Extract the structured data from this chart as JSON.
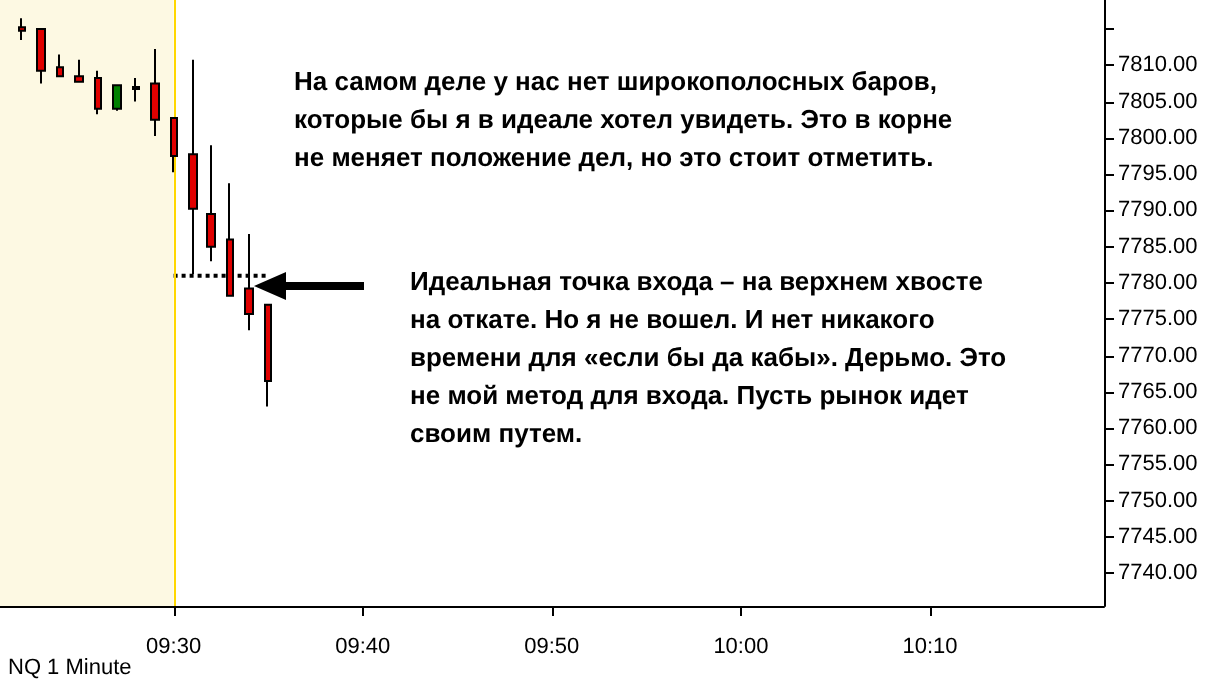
{
  "chart_data": {
    "type": "candlestick",
    "annotations": [
      "На самом деле у нас нет широкополосных баров, которые бы я в идеале хотел увидеть. Это в корне не меняет положение дел, но это стоит отметить.",
      "Идеальная точка входа – на верхнем хвосте на откате. Но я не вошел. И нет никакого времени для «если бы да кабы». Дерьмо. Это не мой метод для входа. Пусть рынок идет своим путем.",
      "NQ 1 Minute"
    ],
    "x": [
      9.3667,
      9.3833,
      9.4,
      9.4167,
      9.4333,
      9.45,
      9.4667,
      9.4833,
      9.5,
      9.5167,
      9.5333,
      9.55,
      9.5667,
      9.5833
    ],
    "series": [
      {
        "type": "candlestick",
        "colors": [
          "#e00000",
          "#e00000",
          "#e00000",
          "#e00000",
          "#e00000",
          "#008000",
          "#e00000",
          "#e00000",
          "#e00000",
          "#e00000",
          "#e00000",
          "#e00000",
          "#e00000",
          "#e00000"
        ],
        "ohlc": [
          [
            7815.25,
            7816.5,
            7813.5,
            7814.75
          ],
          [
            7815,
            7815,
            7807.5,
            7809.25
          ],
          [
            7809.75,
            7811.5,
            7808.5,
            7808.5
          ],
          [
            7808.5,
            7810.75,
            7807.75,
            7807.75
          ],
          [
            7808.25,
            7809.25,
            7803.25,
            7804
          ],
          [
            7804,
            7807.25,
            7803.75,
            7807.25
          ],
          [
            7807,
            7808.25,
            7805,
            7806.75
          ],
          [
            7807.5,
            7812.25,
            7800.25,
            7802.5
          ],
          [
            7802.75,
            7802.75,
            7795.25,
            7797.5
          ],
          [
            7797.75,
            7810.75,
            7781.25,
            7790.25
          ],
          [
            7789.5,
            7799,
            7783,
            7785
          ],
          [
            7786,
            7793.75,
            7778.25,
            7778.25
          ],
          [
            7779.25,
            7786.75,
            7773.5,
            7775.75
          ],
          [
            7777,
            7777,
            7763,
            7766.5
          ]
        ]
      },
      {
        "type": "line",
        "x": [
          9.5,
          9.5833
        ],
        "values": [
          7781,
          7781
        ],
        "color": "#000000",
        "line_style": "dotted",
        "marker": "none"
      }
    ],
    "xlim": [
      9.347,
      10.32
    ],
    "xticks": [
      {
        "value": 9.5,
        "label": "09:30"
      },
      {
        "value": 9.6667,
        "label": "09:40"
      },
      {
        "value": 9.8333,
        "label": "09:50"
      },
      {
        "value": 10,
        "label": "10:00"
      },
      {
        "value": 10.1667,
        "label": "10:10"
      }
    ],
    "ylim": [
      7735.5,
      7819
    ],
    "yticks": [
      {
        "value": 7740,
        "label": "7740.00"
      },
      {
        "value": 7745,
        "label": "7745.00"
      },
      {
        "value": 7750,
        "label": "7750.00"
      },
      {
        "value": 7755,
        "label": "7755.00"
      },
      {
        "value": 7760,
        "label": "7760.00"
      },
      {
        "value": 7765,
        "label": "7765.00"
      },
      {
        "value": 7770,
        "label": "7770.00"
      },
      {
        "value": 7775,
        "label": "7775.00"
      },
      {
        "value": 7780,
        "label": "7780.00"
      },
      {
        "value": 7785,
        "label": "7785.00"
      },
      {
        "value": 7790,
        "label": "7790.00"
      },
      {
        "value": 7795,
        "label": "7795.00"
      },
      {
        "value": 7800,
        "label": "7800.00"
      },
      {
        "value": 7805,
        "label": "7805.00"
      },
      {
        "value": 7810,
        "label": "7810.00"
      },
      {
        "value": 7815,
        "label": null
      }
    ],
    "bands": [
      {
        "axis": "x",
        "from": 9.347,
        "to": 9.5,
        "color": "#fdf9e3"
      }
    ],
    "ref_lines": [
      {
        "axis": "x",
        "value": 9.5,
        "color": "#ffd700"
      }
    ],
    "grid": false
  }
}
